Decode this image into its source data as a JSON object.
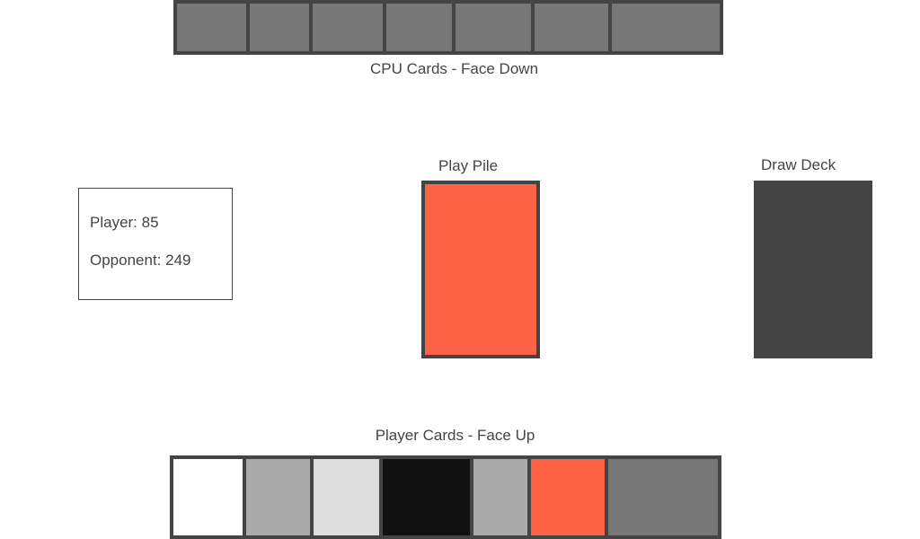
{
  "cpu_hand": {
    "label": "CPU Cards - Face Down",
    "back_color": "#777777",
    "card_count": 7
  },
  "scores": {
    "player_text": "Player: 85",
    "opponent_text": "Opponent: 249"
  },
  "play_pile": {
    "label": "Play Pile",
    "top_card_color": "#FF6347"
  },
  "draw_deck": {
    "label": "Draw Deck",
    "color": "#444444"
  },
  "player_hand": {
    "label": "Player Cards - Face Up",
    "cards": [
      {
        "color": "#FFFFFF"
      },
      {
        "color": "#AAAAAA"
      },
      {
        "color": "#DDDDDD"
      },
      {
        "color": "#111111"
      },
      {
        "color": "#AAAAAA"
      },
      {
        "color": "#FF6347"
      },
      {
        "color": "#777777"
      }
    ]
  }
}
